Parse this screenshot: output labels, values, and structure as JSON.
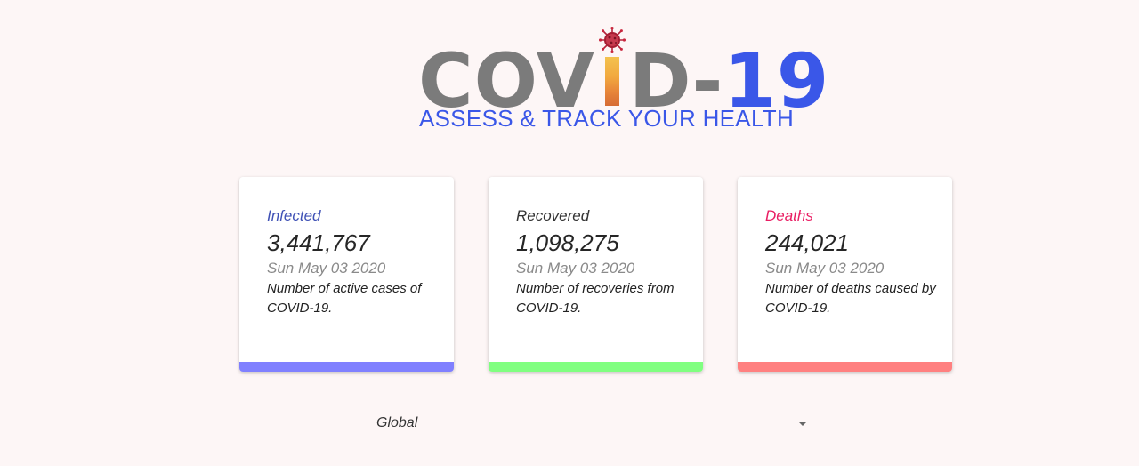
{
  "logo": {
    "word_part_1": "COV",
    "word_part_2": "D",
    "dash": "-",
    "number": "19",
    "subtitle": "ASSESS & TRACK YOUR HEALTH",
    "icon": "virus-icon"
  },
  "cards": [
    {
      "title": "Infected",
      "value": "3,441,767",
      "date": "Sun May 03 2020",
      "description": "Number of active cases of COVID-19.",
      "title_color": "#3f51b5",
      "bar_color": "#8080ff"
    },
    {
      "title": "Recovered",
      "value": "1,098,275",
      "date": "Sun May 03 2020",
      "description": "Number of recoveries from COVID-19.",
      "title_color": "#333333",
      "bar_color": "#80ff80"
    },
    {
      "title": "Deaths",
      "value": "244,021",
      "date": "Sun May 03 2020",
      "description": "Number of deaths caused by COVID-19.",
      "title_color": "#e91e63",
      "bar_color": "#ff8080"
    }
  ],
  "country_select": {
    "selected": "Global",
    "icon": "arrow-drop-down-icon"
  },
  "colors": {
    "background": "#fdf6f6",
    "accent_blue": "#3a57e8",
    "logo_gray": "#7b7b7b"
  }
}
